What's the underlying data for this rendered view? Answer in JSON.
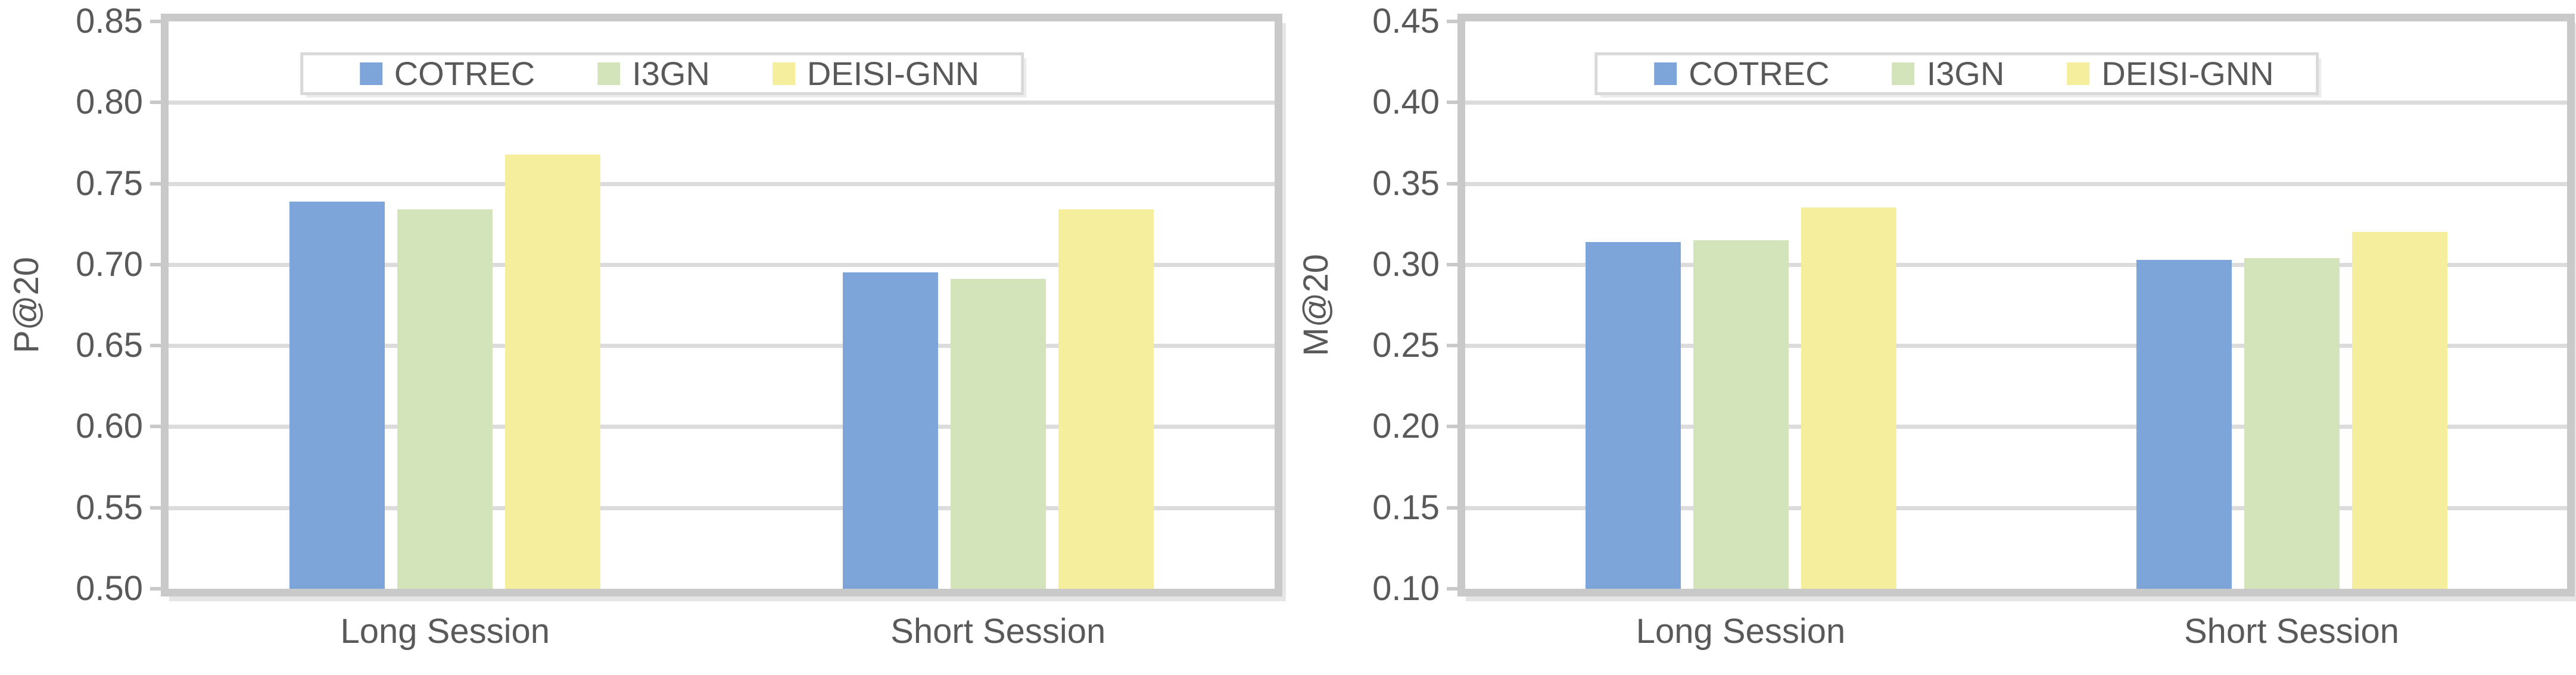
{
  "figure": {
    "background": "#ffffff",
    "text_color": "#595959",
    "grid_color": "#dcdcdc",
    "axis_color": "#c9c9c9",
    "legend_border_color": "#d9d9d9"
  },
  "chart_data": [
    {
      "type": "bar",
      "title": "",
      "xlabel": "",
      "ylabel": "P@20",
      "categories": [
        "Long Session",
        "Short Session"
      ],
      "series": [
        {
          "name": "COTREC",
          "color": "#7DA5DA",
          "values": [
            0.739,
            0.695
          ]
        },
        {
          "name": "I3GN",
          "color": "#D3E4BB",
          "values": [
            0.734,
            0.691
          ]
        },
        {
          "name": "DEISI-GNN",
          "color": "#F5EE9C",
          "values": [
            0.768,
            0.734
          ]
        }
      ],
      "ylim": [
        0.5,
        0.85
      ],
      "yticks": [
        "0.85",
        "0.80",
        "0.75",
        "0.70",
        "0.65",
        "0.60",
        "0.55",
        "0.50"
      ],
      "grid": true,
      "legend_position": "top-center",
      "legend_labels": [
        "COTREC",
        "I3GN",
        "DEISI-GNN"
      ]
    },
    {
      "type": "bar",
      "title": "",
      "xlabel": "",
      "ylabel": "M@20",
      "categories": [
        "Long Session",
        "Short Session"
      ],
      "series": [
        {
          "name": "COTREC",
          "color": "#7DA5DA",
          "values": [
            0.314,
            0.303
          ]
        },
        {
          "name": "I3GN",
          "color": "#D3E4BB",
          "values": [
            0.315,
            0.304
          ]
        },
        {
          "name": "DEISI-GNN",
          "color": "#F5EE9C",
          "values": [
            0.335,
            0.32
          ]
        }
      ],
      "ylim": [
        0.1,
        0.45
      ],
      "yticks": [
        "0.45",
        "0.40",
        "0.35",
        "0.30",
        "0.25",
        "0.20",
        "0.15",
        "0.10"
      ],
      "grid": true,
      "legend_position": "top-center",
      "legend_labels": [
        "COTREC",
        "I3GN",
        "DEISI-GNN"
      ]
    }
  ]
}
